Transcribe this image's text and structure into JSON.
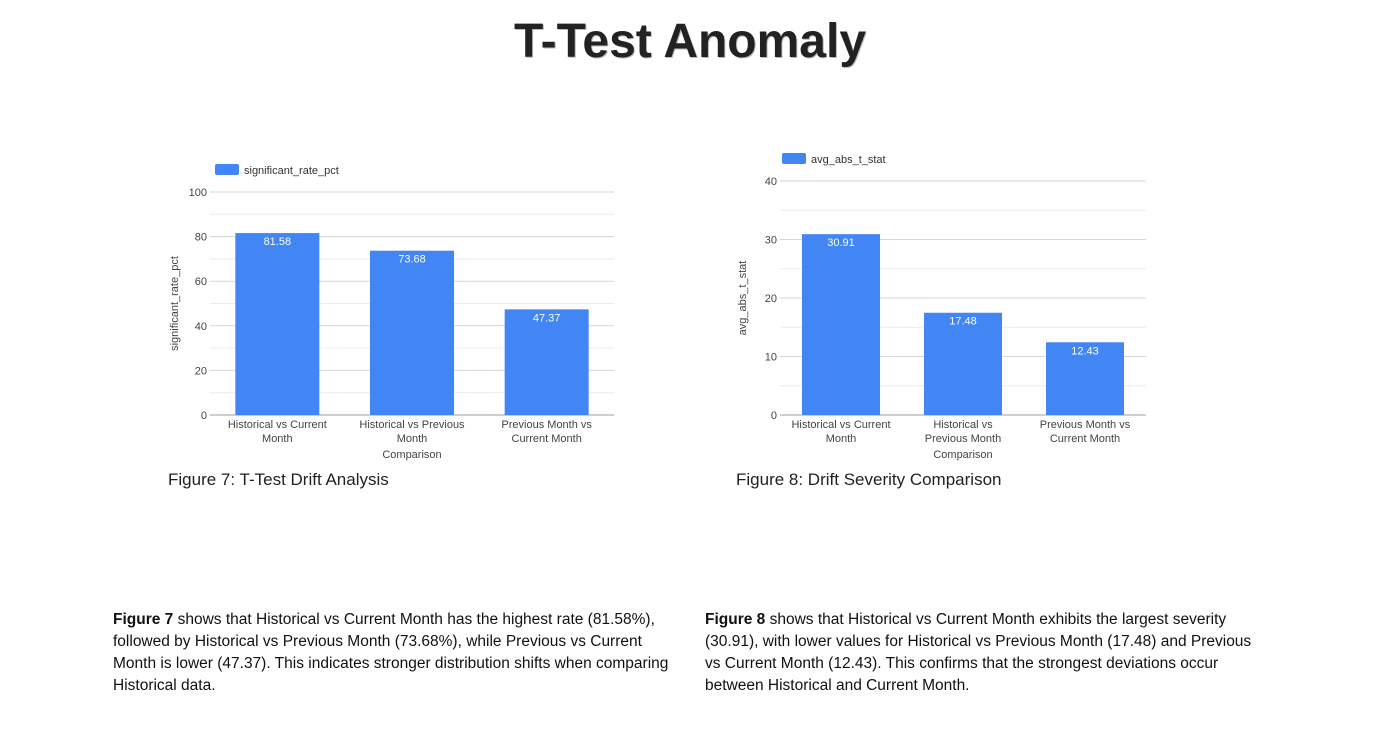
{
  "page": {
    "title": "T-Test Anomaly"
  },
  "figures": [
    {
      "caption": "Figure 7: T-Test Drift Analysis",
      "para_lead": "Figure 7",
      "para_text": " shows that Historical vs Current Month has the highest rate (81.58%), followed by Historical vs Previous Month (73.68%), while Previous vs Current Month is lower (47.37). This indicates stronger distribution shifts when comparing Historical data."
    },
    {
      "caption": "Figure 8: Drift Severity Comparison",
      "para_lead": "Figure 8",
      "para_text": " shows that Historical vs Current Month exhibits the largest severity (30.91), with lower values for Historical vs Previous Month (17.48) and Previous vs Current Month (12.43). This confirms that the strongest deviations occur between Historical and Current Month."
    }
  ],
  "chart_data": [
    {
      "type": "bar",
      "categories": [
        [
          "Historical vs Current",
          "Month"
        ],
        [
          "Historical vs Previous",
          "Month"
        ],
        [
          "Previous Month vs",
          "Current Month"
        ]
      ],
      "series": [
        {
          "name": "significant_rate_pct",
          "values": [
            81.58,
            73.68,
            47.37
          ]
        }
      ],
      "data_labels": [
        "81.58",
        "73.68",
        "47.37"
      ],
      "xlabel": "Comparison",
      "ylabel": "significant_rate_pct",
      "ylim": [
        0,
        100
      ],
      "yticks": [
        0,
        20,
        40,
        60,
        80,
        100
      ],
      "minor_grid_step": 10,
      "color": "#4285f4",
      "legend": "top-left"
    },
    {
      "type": "bar",
      "categories": [
        [
          "Historical vs Current",
          "Month"
        ],
        [
          "Historical vs",
          "Previous Month"
        ],
        [
          "Previous Month vs",
          "Current Month"
        ]
      ],
      "series": [
        {
          "name": "avg_abs_t_stat",
          "values": [
            30.91,
            17.48,
            12.43
          ]
        }
      ],
      "data_labels": [
        "30.91",
        "17.48",
        "12.43"
      ],
      "xlabel": "Comparison",
      "ylabel": "avg_abs_t_stat",
      "ylim": [
        0,
        40
      ],
      "yticks": [
        0,
        10,
        20,
        30,
        40
      ],
      "minor_grid_step": 5,
      "color": "#4285f4",
      "legend": "top-left"
    }
  ]
}
